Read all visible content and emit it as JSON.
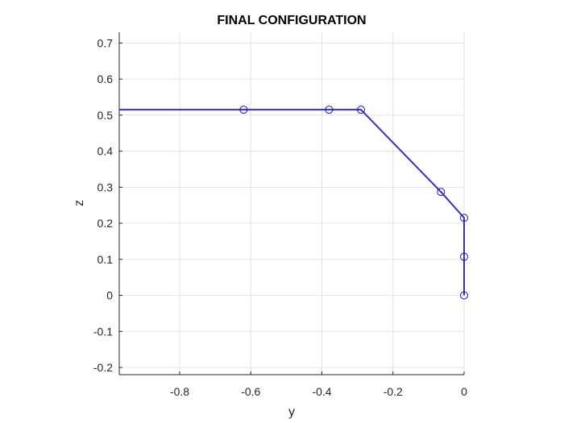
{
  "chart_data": {
    "type": "line",
    "title": "FINAL CONFIGURATION",
    "xlabel": "y",
    "ylabel": "z",
    "xlim": [
      -0.97,
      0.0
    ],
    "ylim": [
      -0.22,
      0.73
    ],
    "xticks": [
      -0.8,
      -0.6,
      -0.4,
      -0.2,
      0
    ],
    "xtick_labels": [
      "-0.8",
      "-0.6",
      "-0.4",
      "-0.2",
      "0"
    ],
    "yticks": [
      -0.2,
      -0.1,
      0,
      0.1,
      0.2,
      0.3,
      0.4,
      0.5,
      0.6,
      0.7
    ],
    "ytick_labels": [
      "-0.2",
      "-0.1",
      "0",
      "0.1",
      "0.2",
      "0.3",
      "0.4",
      "0.5",
      "0.6",
      "0.7"
    ],
    "grid": true,
    "box": "left-bottom",
    "line_color": "#3a2fb8",
    "marker_color": "#1a1aa0",
    "series": [
      {
        "x": [
          -0.97,
          -0.62,
          -0.38,
          -0.29,
          -0.065,
          0.0,
          0.0,
          0.0
        ],
        "y": [
          0.515,
          0.515,
          0.515,
          0.515,
          0.287,
          0.215,
          0.107,
          0.0
        ],
        "markers": [
          false,
          true,
          true,
          true,
          true,
          true,
          true,
          true
        ]
      }
    ]
  }
}
